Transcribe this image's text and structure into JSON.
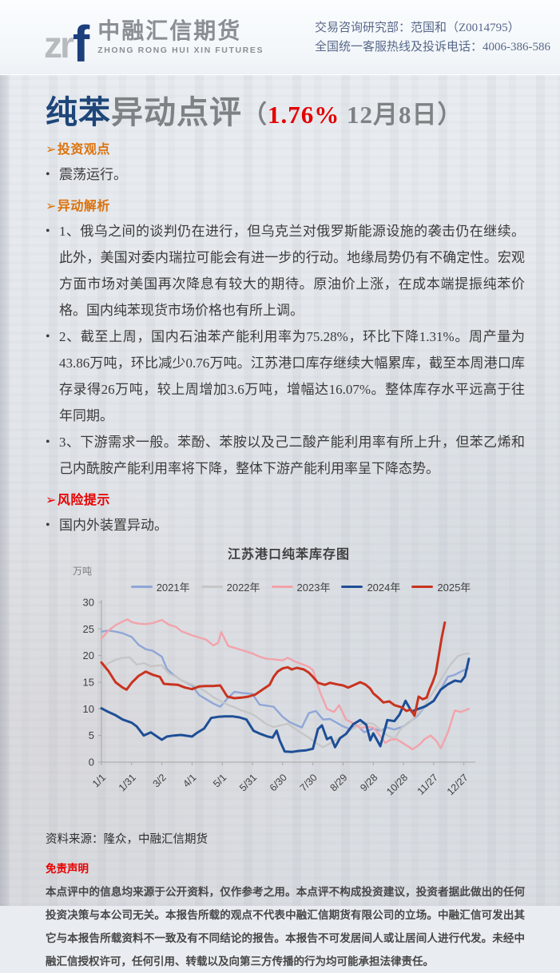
{
  "header": {
    "logo_gray_letters": "zr",
    "logo_blue_letter": "f",
    "company_cn": "中融汇信期货",
    "company_en": "ZHONG RONG HUI XIN FUTURES",
    "contact_line1": "交易咨询研究部：范国和（Z0014795）",
    "contact_line2": "全国统一客服热线及投诉电话：4006-386-586"
  },
  "title": {
    "product": "纯苯",
    "topic": "异动点评",
    "paren_open": "（",
    "change_pct": "1.76%",
    "date_close": " 12月8日）"
  },
  "colors": {
    "title_navy": "#1e4679",
    "title_gray": "#7f8285",
    "accent_red": "#e30000",
    "section_orange": "#dc720b",
    "section_red": "#e80000"
  },
  "sections": [
    {
      "marker": "➢",
      "heading": "投资观点",
      "bullets": [
        "震荡运行。"
      ]
    },
    {
      "marker": "➢",
      "heading": "异动解析",
      "bullets": [
        "1、俄乌之间的谈判仍在进行，但乌克兰对俄罗斯能源设施的袭击仍在继续。此外，美国对委内瑞拉可能会有进一步的行动。地缘局势仍有不确定性。宏观方面市场对美国再次降息有较大的期待。原油价上涨，在成本端提振纯苯价格。国内纯苯现货市场价格也有所上调。",
        "2、截至上周，国内石油苯产能利用率为75.28%，环比下降1.31%。周产量为43.86万吨，环比减少0.76万吨。江苏港口库存继续大幅累库，截至本周港口库存录得26万吨，较上周增加3.6万吨，增幅达16.07%。整体库存水平远高于往年同期。",
        "3、下游需求一般。苯酚、苯胺以及己二酸产能利用率有所上升，但苯乙烯和己内酰胺产能利用率将下降，整体下游产能利用率呈下降态势。"
      ]
    },
    {
      "marker": "➢",
      "heading": "风险提示",
      "bullets": [
        "国内外装置异动。"
      ]
    }
  ],
  "chart_data": {
    "type": "line",
    "title": "江苏港口纯苯库存图",
    "ylabel": "万吨",
    "ylim": [
      0,
      30
    ],
    "y_ticks": [
      0,
      5,
      10,
      15,
      20,
      25,
      30
    ],
    "grid": false,
    "legend_position": "top",
    "x_tick_days": [
      1,
      31,
      61,
      91,
      121,
      151,
      181,
      211,
      241,
      271,
      301,
      331,
      361
    ],
    "x_tick_labels": [
      "1/1",
      "1/31",
      "3/2",
      "4/1",
      "5/1",
      "5/31",
      "6/30",
      "7/30",
      "8/29",
      "9/28",
      "10/28",
      "11/27",
      "12/27"
    ],
    "series": [
      {
        "name": "2021年",
        "color": "#8fa6d6",
        "width": 2.4,
        "points": [
          [
            1,
            24.5
          ],
          [
            8,
            24.7
          ],
          [
            15,
            24.5
          ],
          [
            22,
            24.2
          ],
          [
            31,
            23.5
          ],
          [
            38,
            22.0
          ],
          [
            45,
            21.2
          ],
          [
            52,
            20.9
          ],
          [
            61,
            19.8
          ],
          [
            66,
            17.5
          ],
          [
            73,
            16.3
          ],
          [
            80,
            15.4
          ],
          [
            91,
            14.4
          ],
          [
            98,
            12.6
          ],
          [
            105,
            11.8
          ],
          [
            112,
            11.0
          ],
          [
            119,
            10.4
          ],
          [
            126,
            11.9
          ],
          [
            133,
            13.2
          ],
          [
            140,
            13.0
          ],
          [
            151,
            12.8
          ],
          [
            158,
            10.8
          ],
          [
            165,
            10.6
          ],
          [
            172,
            10.4
          ],
          [
            181,
            8.5
          ],
          [
            188,
            7.5
          ],
          [
            195,
            6.9
          ],
          [
            200,
            6.5
          ],
          [
            207,
            9.2
          ],
          [
            214,
            9.6
          ],
          [
            221,
            8.0
          ],
          [
            228,
            8.1
          ],
          [
            241,
            6.7
          ],
          [
            248,
            6.2
          ],
          [
            255,
            6.9
          ],
          [
            262,
            5.6
          ],
          [
            271,
            6.3
          ],
          [
            278,
            5.9
          ],
          [
            285,
            6.5
          ],
          [
            292,
            6.1
          ],
          [
            301,
            6.7
          ],
          [
            308,
            7.7
          ],
          [
            315,
            8.7
          ],
          [
            322,
            10.4
          ],
          [
            331,
            11.4
          ],
          [
            338,
            13.6
          ],
          [
            345,
            16.0
          ],
          [
            352,
            16.4
          ],
          [
            358,
            17.0
          ],
          [
            365,
            17.6
          ]
        ]
      },
      {
        "name": "2022年",
        "color": "#c6c6c6",
        "width": 2.4,
        "points": [
          [
            1,
            17.4
          ],
          [
            8,
            18.6
          ],
          [
            15,
            19.2
          ],
          [
            22,
            19.6
          ],
          [
            29,
            19.7
          ],
          [
            36,
            18.3
          ],
          [
            43,
            18.6
          ],
          [
            50,
            18.0
          ],
          [
            61,
            18.2
          ],
          [
            68,
            16.6
          ],
          [
            75,
            16.0
          ],
          [
            82,
            15.2
          ],
          [
            91,
            14.6
          ],
          [
            98,
            14.0
          ],
          [
            105,
            13.2
          ],
          [
            112,
            12.2
          ],
          [
            119,
            11.5
          ],
          [
            126,
            10.8
          ],
          [
            133,
            10.3
          ],
          [
            140,
            9.7
          ],
          [
            151,
            9.0
          ],
          [
            158,
            8.1
          ],
          [
            165,
            7.1
          ],
          [
            172,
            6.6
          ],
          [
            179,
            6.9
          ],
          [
            186,
            7.2
          ],
          [
            193,
            6.3
          ],
          [
            200,
            5.4
          ],
          [
            207,
            4.6
          ],
          [
            214,
            3.6
          ],
          [
            221,
            2.8
          ],
          [
            228,
            3.5
          ],
          [
            235,
            4.3
          ],
          [
            241,
            4.9
          ],
          [
            248,
            6.0
          ],
          [
            255,
            6.7
          ],
          [
            262,
            7.4
          ],
          [
            271,
            7.2
          ],
          [
            278,
            6.1
          ],
          [
            285,
            5.0
          ],
          [
            292,
            4.4
          ],
          [
            299,
            6.4
          ],
          [
            306,
            7.3
          ],
          [
            313,
            8.6
          ],
          [
            320,
            10.1
          ],
          [
            327,
            12.1
          ],
          [
            334,
            14.2
          ],
          [
            341,
            16.4
          ],
          [
            348,
            18.4
          ],
          [
            355,
            19.9
          ],
          [
            361,
            20.3
          ],
          [
            366,
            20.4
          ]
        ]
      },
      {
        "name": "2023年",
        "color": "#f2a3ab",
        "width": 2.4,
        "points": [
          [
            1,
            23.2
          ],
          [
            8,
            24.7
          ],
          [
            15,
            25.7
          ],
          [
            22,
            26.4
          ],
          [
            27,
            26.8
          ],
          [
            31,
            26.3
          ],
          [
            38,
            26.0
          ],
          [
            45,
            25.9
          ],
          [
            52,
            26.1
          ],
          [
            61,
            26.7
          ],
          [
            68,
            25.8
          ],
          [
            75,
            25.4
          ],
          [
            80,
            24.6
          ],
          [
            91,
            23.8
          ],
          [
            98,
            23.4
          ],
          [
            105,
            23.0
          ],
          [
            112,
            21.9
          ],
          [
            117,
            22.4
          ],
          [
            120,
            24.4
          ],
          [
            127,
            21.8
          ],
          [
            134,
            21.4
          ],
          [
            141,
            21.0
          ],
          [
            151,
            20.4
          ],
          [
            158,
            19.8
          ],
          [
            165,
            19.4
          ],
          [
            172,
            19.3
          ],
          [
            181,
            19.1
          ],
          [
            186,
            19.6
          ],
          [
            193,
            18.9
          ],
          [
            200,
            18.4
          ],
          [
            207,
            17.9
          ],
          [
            211,
            17.3
          ],
          [
            218,
            13.2
          ],
          [
            225,
            10.0
          ],
          [
            232,
            9.4
          ],
          [
            237,
            10.7
          ],
          [
            244,
            8.0
          ],
          [
            251,
            7.3
          ],
          [
            258,
            6.4
          ],
          [
            264,
            6.6
          ],
          [
            271,
            6.5
          ],
          [
            278,
            4.9
          ],
          [
            283,
            3.6
          ],
          [
            288,
            4.2
          ],
          [
            294,
            4.3
          ],
          [
            301,
            3.5
          ],
          [
            306,
            2.9
          ],
          [
            310,
            2.4
          ],
          [
            317,
            3.3
          ],
          [
            322,
            4.3
          ],
          [
            328,
            5.0
          ],
          [
            334,
            3.9
          ],
          [
            338,
            2.6
          ],
          [
            345,
            5.5
          ],
          [
            352,
            9.7
          ],
          [
            358,
            9.4
          ],
          [
            366,
            10.0
          ]
        ]
      },
      {
        "name": "2024年",
        "color": "#1e4e96",
        "width": 3,
        "points": [
          [
            1,
            10.1
          ],
          [
            8,
            9.4
          ],
          [
            15,
            8.8
          ],
          [
            22,
            8.0
          ],
          [
            31,
            7.4
          ],
          [
            36,
            6.7
          ],
          [
            43,
            5.0
          ],
          [
            50,
            5.6
          ],
          [
            57,
            4.7
          ],
          [
            61,
            4.2
          ],
          [
            66,
            4.8
          ],
          [
            73,
            5.0
          ],
          [
            80,
            5.1
          ],
          [
            91,
            4.8
          ],
          [
            96,
            5.5
          ],
          [
            103,
            6.3
          ],
          [
            110,
            8.3
          ],
          [
            117,
            8.5
          ],
          [
            124,
            8.6
          ],
          [
            131,
            8.6
          ],
          [
            138,
            8.4
          ],
          [
            145,
            8.0
          ],
          [
            152,
            5.9
          ],
          [
            159,
            5.3
          ],
          [
            166,
            4.8
          ],
          [
            171,
            4.6
          ],
          [
            175,
            5.9
          ],
          [
            178,
            4.1
          ],
          [
            183,
            2.0
          ],
          [
            190,
            1.9
          ],
          [
            197,
            2.1
          ],
          [
            204,
            2.2
          ],
          [
            211,
            2.5
          ],
          [
            216,
            6.2
          ],
          [
            220,
            6.9
          ],
          [
            225,
            4.3
          ],
          [
            229,
            4.7
          ],
          [
            233,
            2.8
          ],
          [
            238,
            4.5
          ],
          [
            244,
            5.3
          ],
          [
            251,
            7.1
          ],
          [
            258,
            7.9
          ],
          [
            264,
            7.0
          ],
          [
            268,
            4.1
          ],
          [
            271,
            5.4
          ],
          [
            278,
            3.0
          ],
          [
            285,
            7.9
          ],
          [
            292,
            7.7
          ],
          [
            297,
            8.9
          ],
          [
            303,
            11.5
          ],
          [
            309,
            9.5
          ],
          [
            316,
            10.0
          ],
          [
            323,
            10.5
          ],
          [
            331,
            11.5
          ],
          [
            338,
            13.6
          ],
          [
            345,
            14.6
          ],
          [
            352,
            15.3
          ],
          [
            358,
            15.1
          ],
          [
            362,
            16.1
          ],
          [
            366,
            19.4
          ]
        ]
      },
      {
        "name": "2025年",
        "color": "#c9331f",
        "width": 3,
        "points": [
          [
            1,
            18.7
          ],
          [
            8,
            17.1
          ],
          [
            15,
            15.0
          ],
          [
            22,
            14.0
          ],
          [
            26,
            13.6
          ],
          [
            31,
            14.9
          ],
          [
            38,
            16.2
          ],
          [
            45,
            17.0
          ],
          [
            52,
            16.4
          ],
          [
            59,
            16.0
          ],
          [
            63,
            14.7
          ],
          [
            70,
            14.6
          ],
          [
            77,
            14.5
          ],
          [
            84,
            14.0
          ],
          [
            91,
            13.7
          ],
          [
            98,
            14.2
          ],
          [
            105,
            14.3
          ],
          [
            112,
            14.3
          ],
          [
            119,
            14.4
          ],
          [
            126,
            12.3
          ],
          [
            133,
            12.0
          ],
          [
            140,
            12.1
          ],
          [
            147,
            12.3
          ],
          [
            154,
            12.7
          ],
          [
            161,
            13.6
          ],
          [
            168,
            14.5
          ],
          [
            172,
            16.0
          ],
          [
            176,
            17.0
          ],
          [
            181,
            17.6
          ],
          [
            186,
            17.8
          ],
          [
            190,
            17.4
          ],
          [
            195,
            17.7
          ],
          [
            202,
            17.4
          ],
          [
            207,
            16.8
          ],
          [
            211,
            16.0
          ],
          [
            216,
            14.9
          ],
          [
            223,
            14.5
          ],
          [
            228,
            14.9
          ],
          [
            235,
            14.6
          ],
          [
            241,
            14.4
          ],
          [
            246,
            14.0
          ],
          [
            251,
            14.4
          ],
          [
            258,
            15.0
          ],
          [
            263,
            14.6
          ],
          [
            268,
            13.8
          ],
          [
            271,
            12.9
          ],
          [
            276,
            12.1
          ],
          [
            281,
            11.2
          ],
          [
            287,
            11.4
          ],
          [
            292,
            10.7
          ],
          [
            299,
            10.3
          ],
          [
            304,
            9.6
          ],
          [
            308,
            9.9
          ],
          [
            312,
            8.7
          ],
          [
            316,
            12.3
          ],
          [
            320,
            11.8
          ],
          [
            324,
            12.1
          ],
          [
            327,
            13.7
          ],
          [
            330,
            15.0
          ],
          [
            333,
            16.6
          ],
          [
            336,
            20.0
          ],
          [
            339,
            23.4
          ],
          [
            342,
            26.2
          ]
        ]
      }
    ]
  },
  "source_note": "资料来源：隆众，中融汇信期货",
  "disclaimer": {
    "heading": "免责声明",
    "body": "本点评中的信息均来源于公开资料，仅作参考之用。本点评不构成投资建议，投资者据此做出的任何投资决策与本公司无关。本报告所载的观点不代表中融汇信期货有限公司的立场。中融汇信可发出其它与本报告所载资料不一致及有不同结论的报告。本报告不可发居间人或让居间人进行代发。未经中融汇信授权许可，任何引用、转载以及向第三方传播的行为均可能承担法律责任。"
  }
}
